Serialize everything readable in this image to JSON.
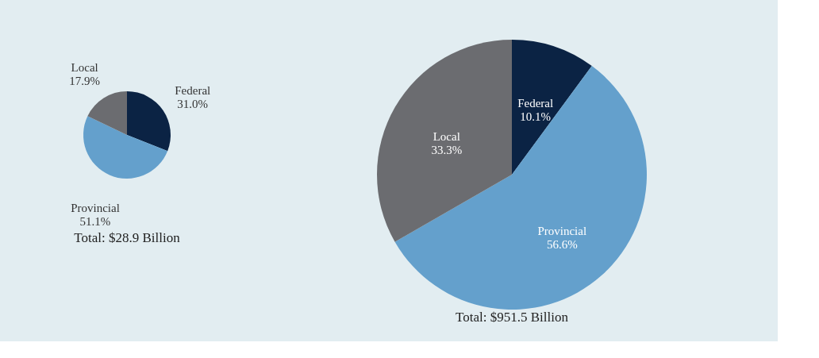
{
  "chart_data": [
    {
      "type": "pie",
      "categories": [
        "Federal",
        "Provincial",
        "Local"
      ],
      "values": [
        31.0,
        51.1,
        17.9
      ],
      "value_labels": [
        "31.0%",
        "51.1%",
        "17.9%"
      ],
      "colors": [
        "#0b2344",
        "#64a0cc",
        "#6b6c70"
      ],
      "annotations": [
        "Total:  $28.9 Billion"
      ]
    },
    {
      "type": "pie",
      "categories": [
        "Federal",
        "Provincial",
        "Local"
      ],
      "values": [
        10.1,
        56.6,
        33.3
      ],
      "value_labels": [
        "10.1%",
        "56.6%",
        "33.3%"
      ],
      "colors": [
        "#0b2344",
        "#64a0cc",
        "#6b6c70"
      ],
      "annotations": [
        "Total:  $951.5 Billion"
      ]
    }
  ]
}
